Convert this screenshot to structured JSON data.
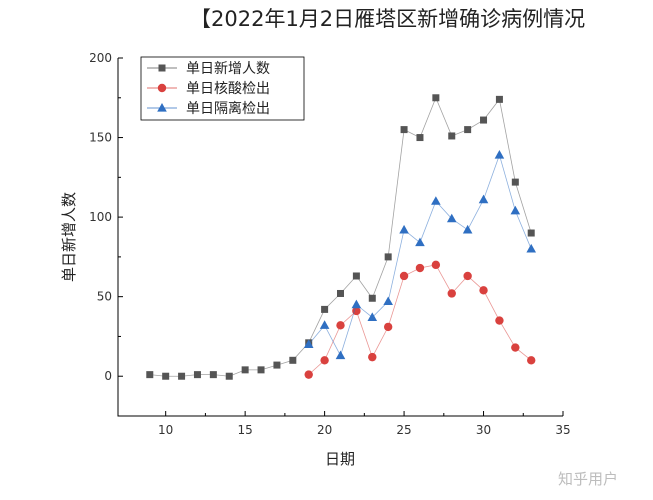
{
  "watermark": "知乎用户",
  "chart_data": {
    "type": "line",
    "title": "【2022年1月2日雁塔区新增确诊病例情况",
    "xlabel": "日期",
    "ylabel": "单日新增人数",
    "xlim": [
      7,
      35
    ],
    "ylim": [
      -25,
      200
    ],
    "xticks": [
      10,
      15,
      20,
      25,
      30,
      35
    ],
    "yticks": [
      0,
      50,
      100,
      150,
      200
    ],
    "legend_position": "top-left",
    "grid": false,
    "series": [
      {
        "name": "单日新增人数",
        "color": "#555555",
        "marker": "square",
        "x": [
          9,
          10,
          11,
          12,
          13,
          14,
          15,
          16,
          17,
          18,
          19,
          20,
          21,
          22,
          23,
          24,
          25,
          26,
          27,
          28,
          29,
          30,
          31,
          32,
          33
        ],
        "y": [
          1,
          0,
          0,
          1,
          1,
          0,
          4,
          4,
          7,
          10,
          21,
          42,
          52,
          63,
          49,
          75,
          155,
          150,
          175,
          151,
          155,
          161,
          174,
          122,
          90
        ]
      },
      {
        "name": "单日核酸检出",
        "color": "#d9413e",
        "marker": "circle",
        "x": [
          19,
          20,
          21,
          22,
          23,
          24,
          25,
          26,
          27,
          28,
          29,
          30,
          31,
          32,
          33
        ],
        "y": [
          1,
          10,
          32,
          41,
          12,
          31,
          63,
          68,
          70,
          52,
          63,
          54,
          35,
          18,
          10
        ]
      },
      {
        "name": "单日隔离检出",
        "color": "#2f6fc2",
        "marker": "triangle",
        "x": [
          19,
          20,
          21,
          22,
          23,
          24,
          25,
          26,
          27,
          28,
          29,
          30,
          31,
          32,
          33
        ],
        "y": [
          20,
          32,
          13,
          45,
          37,
          47,
          92,
          84,
          110,
          99,
          92,
          111,
          139,
          104,
          80
        ]
      }
    ]
  }
}
